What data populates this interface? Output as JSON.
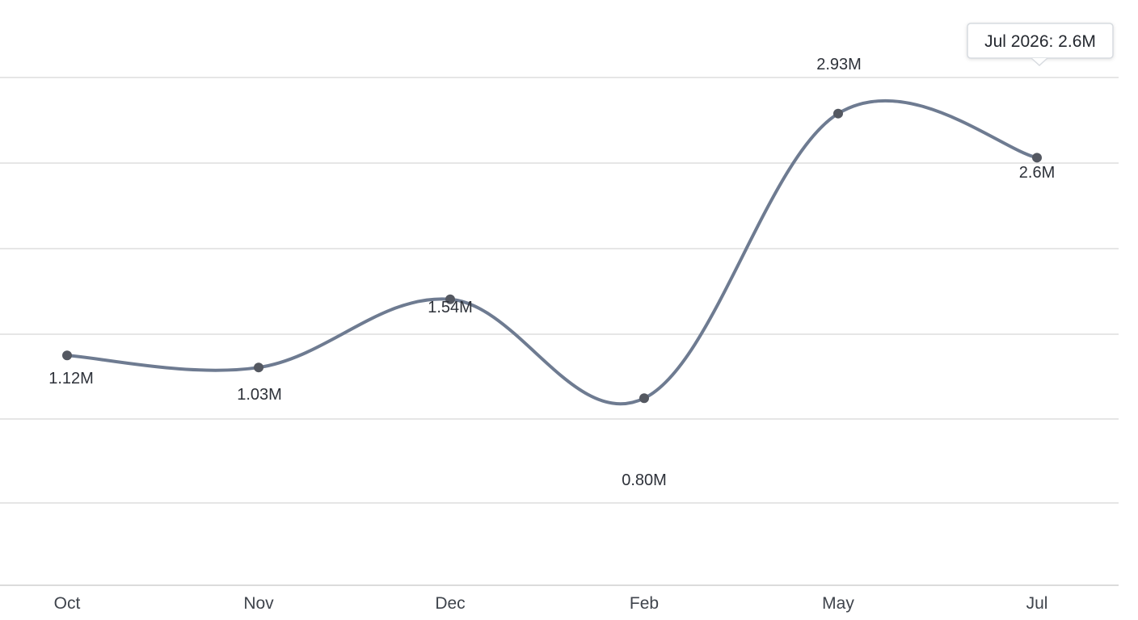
{
  "chart_data": {
    "type": "line",
    "categories": [
      "Oct",
      "Nov",
      "Dec",
      "Feb",
      "May",
      "Jul"
    ],
    "series": [
      {
        "values": [
          1.12,
          1.03,
          1.54,
          0.8,
          2.93,
          2.6
        ],
        "data_labels": [
          "1.12M",
          "1.03M",
          "1.54M",
          "0.80M",
          "2.93M",
          "2.6M"
        ],
        "color": "#6e7b91"
      }
    ],
    "ylim": [
      -0.6,
      3.2
    ],
    "grid": true,
    "tooltip": {
      "text": "Jul 2026: 2.6M",
      "category": "Jul"
    }
  }
}
